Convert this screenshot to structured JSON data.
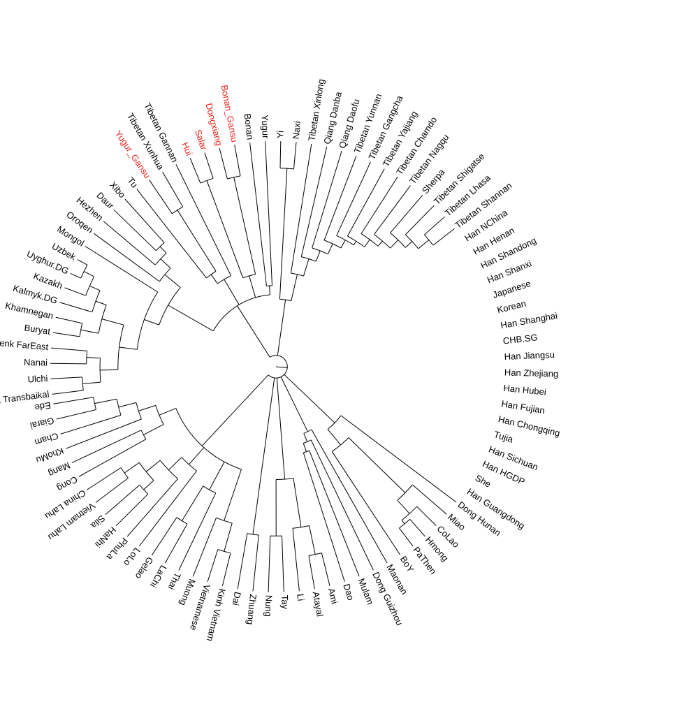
{
  "colors": {
    "highlight": "#e8261c",
    "text": "#000000",
    "branch": "#000000"
  },
  "taxa": [
    {
      "name": "Evenk Transbaikal"
    },
    {
      "name": "Ulchi"
    },
    {
      "name": "Nanai"
    },
    {
      "name": "Evenk FarEast"
    },
    {
      "name": "Buryat"
    },
    {
      "name": "Khamnegan"
    },
    {
      "name": "Kalmyk.DG"
    },
    {
      "name": "Kazakh"
    },
    {
      "name": "Uyghur.DG"
    },
    {
      "name": "Uzbek"
    },
    {
      "name": "Mongol"
    },
    {
      "name": "Oroqen"
    },
    {
      "name": "Hezhen"
    },
    {
      "name": "Daur"
    },
    {
      "name": "Xibo"
    },
    {
      "name": "Tu"
    },
    {
      "name": "Yugur_Gansu",
      "highlight": true
    },
    {
      "name": "Tibetan Xunhua"
    },
    {
      "name": "Tibetan Gannan"
    },
    {
      "name": "Hui",
      "highlight": true
    },
    {
      "name": "Salar",
      "highlight": true
    },
    {
      "name": "Dongxiang",
      "highlight": true
    },
    {
      "name": "Bonan_Gansu",
      "highlight": true
    },
    {
      "name": "Bonan"
    },
    {
      "name": "Yugur"
    },
    {
      "name": "Yi"
    },
    {
      "name": "Naxi"
    },
    {
      "name": "Tibetan Xinlong"
    },
    {
      "name": "Qiang Danba"
    },
    {
      "name": "Qiang Daofu"
    },
    {
      "name": "Tibetan Yunnan"
    },
    {
      "name": "Tibetan Gangcha"
    },
    {
      "name": "Tibetan Yajiang"
    },
    {
      "name": "Tibetan Chamdo"
    },
    {
      "name": "Tibetan Nagqu"
    },
    {
      "name": "Sherpa"
    },
    {
      "name": "Tibetan Shigatse"
    },
    {
      "name": "Tibetan Lhasa"
    },
    {
      "name": "Tibetan Shannan"
    },
    {
      "name": "Han NChina"
    },
    {
      "name": "Han Henan"
    },
    {
      "name": "Han Shandong"
    },
    {
      "name": "Han Shanxi"
    },
    {
      "name": "Japanese"
    },
    {
      "name": "Korean"
    },
    {
      "name": "Han Shanghai"
    },
    {
      "name": "CHB.SG"
    },
    {
      "name": "Han Jiangsu"
    },
    {
      "name": "Han Zhejiang"
    },
    {
      "name": "Han Hubei"
    },
    {
      "name": "Han Fujian"
    },
    {
      "name": "Han Chongqing"
    },
    {
      "name": "Tujia"
    },
    {
      "name": "Han Sichuan"
    },
    {
      "name": "Han HGDP"
    },
    {
      "name": "She"
    },
    {
      "name": "Han Guangdong"
    },
    {
      "name": "Dong Hunan"
    },
    {
      "name": "Miao"
    },
    {
      "name": "CoLao"
    },
    {
      "name": "Hmong"
    },
    {
      "name": "PaThen"
    },
    {
      "name": "BoY"
    },
    {
      "name": "Maonan"
    },
    {
      "name": "Dong Guizhou"
    },
    {
      "name": "Mulam"
    },
    {
      "name": "Dao"
    },
    {
      "name": "Ami"
    },
    {
      "name": "Atayal"
    },
    {
      "name": "Li"
    },
    {
      "name": "Tay"
    },
    {
      "name": "Nung"
    },
    {
      "name": "Zhuang"
    },
    {
      "name": "Dai"
    },
    {
      "name": "Kinh Vietnam"
    },
    {
      "name": "Vietnamese"
    },
    {
      "name": "Muong"
    },
    {
      "name": "Thai"
    },
    {
      "name": "LaChi"
    },
    {
      "name": "Gelao"
    },
    {
      "name": "LoLo"
    },
    {
      "name": "PhuLa"
    },
    {
      "name": "HaNhi"
    },
    {
      "name": "Sila"
    },
    {
      "name": "Vietnam Lahu"
    },
    {
      "name": "China Lahu"
    },
    {
      "name": "Cong"
    },
    {
      "name": "Mang"
    },
    {
      "name": "KhoMu"
    },
    {
      "name": "Cham"
    },
    {
      "name": "Giarai"
    },
    {
      "name": "Ede"
    }
  ]
}
